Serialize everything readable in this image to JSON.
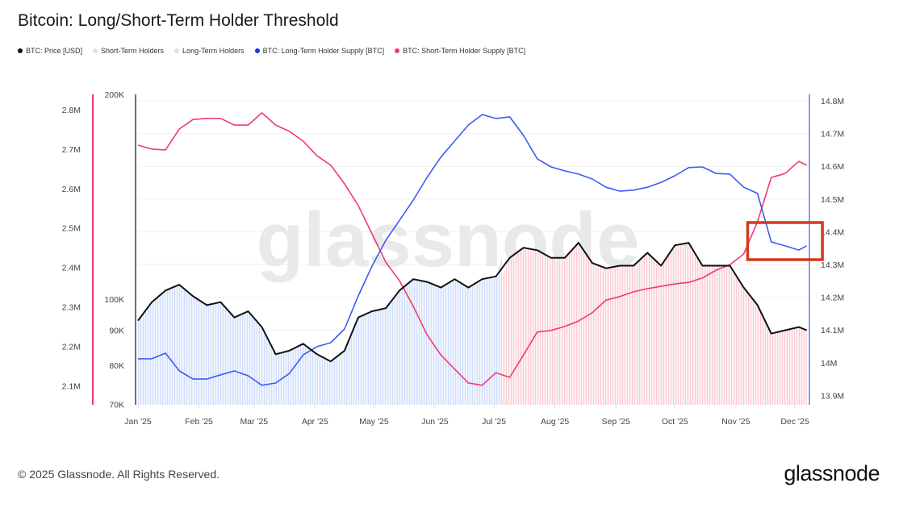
{
  "title": "Bitcoin: Long/Short-Term Holder Threshold",
  "footer": {
    "copyright": "© 2025 Glassnode. All Rights Reserved.",
    "brand": "glassnode"
  },
  "watermark": "glassnode",
  "colors": {
    "price": "#111111",
    "sth_area": "#f9c9cf",
    "lth_area": "#c9d8fb",
    "lth_supply": "#3b5bf5",
    "sth_supply": "#ee3d6b",
    "annotation": "#d23a1e"
  },
  "legend": [
    {
      "label": "BTC: Price [USD]",
      "color": "#111111"
    },
    {
      "label": "Short-Term Holders",
      "color": "#fbd3d8"
    },
    {
      "label": "Long-Term Holders",
      "color": "#d6e2fc"
    },
    {
      "label": "BTC: Long-Term Holder Supply [BTC]",
      "color": "#2233dd"
    },
    {
      "label": "BTC: Short-Term Holder Supply [BTC]",
      "color": "#ee3d6b"
    }
  ],
  "chart_data": {
    "type": "line",
    "title": "Bitcoin: Long/Short-Term Holder Threshold",
    "x": {
      "start_date": "2025-01-01",
      "step_days": 7,
      "last_day_offset": 340,
      "tick_labels": [
        "Jan '25",
        "Feb '25",
        "Mar '25",
        "Apr '25",
        "May '25",
        "Jun '25",
        "Jul '25",
        "Aug '25",
        "Sep '25",
        "Oct '25",
        "Nov '25",
        "Dec '25"
      ],
      "tick_day_offsets": [
        0,
        31,
        59,
        90,
        120,
        151,
        181,
        212,
        243,
        273,
        304,
        334
      ]
    },
    "axes": {
      "sth_supply": {
        "side": "left-outer",
        "range": [
          2.05,
          2.84
        ],
        "unit": "M",
        "tick_labels": [
          "2.8M",
          "2.7M",
          "2.6M",
          "2.5M",
          "2.4M",
          "2.3M",
          "2.2M",
          "2.1M"
        ],
        "ticks": [
          2.8,
          2.7,
          2.6,
          2.5,
          2.4,
          2.3,
          2.2,
          2.1
        ]
      },
      "price": {
        "side": "left-inner",
        "scale": "log",
        "range": [
          70,
          200
        ],
        "unit": "K",
        "tick_labels": [
          "200K",
          "100K",
          "90K",
          "80K",
          "70K"
        ],
        "ticks": [
          200,
          100,
          90,
          80,
          70
        ]
      },
      "lth_supply": {
        "side": "right",
        "range": [
          13.88,
          14.83
        ],
        "unit": "M",
        "tick_labels": [
          "14.8M",
          "14.7M",
          "14.6M",
          "14.5M",
          "14.4M",
          "14.3M",
          "14.2M",
          "14.1M",
          "14M",
          "13.9M"
        ],
        "ticks": [
          14.8,
          14.7,
          14.6,
          14.5,
          14.4,
          14.3,
          14.2,
          14.1,
          14.0,
          13.9
        ]
      }
    },
    "regimes": [
      {
        "name": "Long-Term Holders",
        "from_day": 0,
        "to_day": 185
      },
      {
        "name": "Short-Term Holders",
        "from_day": 185,
        "to_day": 340
      }
    ],
    "series": [
      {
        "name": "BTC: Price [USD]",
        "axis": "price",
        "unit": "K USD",
        "values": [
          93,
          99,
          103,
          105,
          101,
          98,
          99,
          94,
          96,
          91,
          83,
          84,
          86,
          83,
          81,
          84,
          94,
          96,
          97,
          103,
          107,
          106,
          104,
          107,
          104,
          107,
          108,
          115,
          119,
          118,
          115,
          115,
          121,
          113,
          111,
          112,
          112,
          117,
          112,
          120,
          121,
          112,
          112,
          112,
          104,
          98,
          89,
          90,
          91,
          90
        ]
      },
      {
        "name": "BTC: Long-Term Holder Supply [BTC]",
        "axis": "lth_supply",
        "unit": "M BTC",
        "values": [
          14.012,
          14.012,
          14.029,
          13.975,
          13.95,
          13.95,
          13.963,
          13.975,
          13.96,
          13.931,
          13.938,
          13.967,
          14.024,
          14.049,
          14.061,
          14.103,
          14.204,
          14.295,
          14.374,
          14.435,
          14.497,
          14.566,
          14.628,
          14.677,
          14.726,
          14.758,
          14.746,
          14.751,
          14.694,
          14.623,
          14.598,
          14.586,
          14.576,
          14.561,
          14.536,
          14.524,
          14.527,
          14.536,
          14.551,
          14.571,
          14.596,
          14.598,
          14.578,
          14.576,
          14.536,
          14.517,
          14.369,
          14.357,
          14.344,
          14.357
        ]
      },
      {
        "name": "BTC: Short-Term Holder Supply [BTC]",
        "axis": "sth_supply",
        "unit": "M BTC",
        "values": [
          2.71,
          2.7,
          2.698,
          2.751,
          2.775,
          2.778,
          2.778,
          2.761,
          2.761,
          2.792,
          2.761,
          2.745,
          2.72,
          2.683,
          2.659,
          2.612,
          2.557,
          2.485,
          2.413,
          2.366,
          2.301,
          2.229,
          2.178,
          2.142,
          2.107,
          2.101,
          2.133,
          2.121,
          2.178,
          2.236,
          2.24,
          2.25,
          2.264,
          2.285,
          2.317,
          2.326,
          2.338,
          2.346,
          2.352,
          2.358,
          2.362,
          2.373,
          2.393,
          2.407,
          2.434,
          2.516,
          2.628,
          2.638,
          2.669,
          2.659
        ]
      }
    ],
    "annotations": [
      {
        "type": "box",
        "from_day": 310,
        "to_day": 348,
        "note": "highlight STH/LTH supply crossover"
      }
    ],
    "grid": true,
    "legend_position": "top-left"
  }
}
